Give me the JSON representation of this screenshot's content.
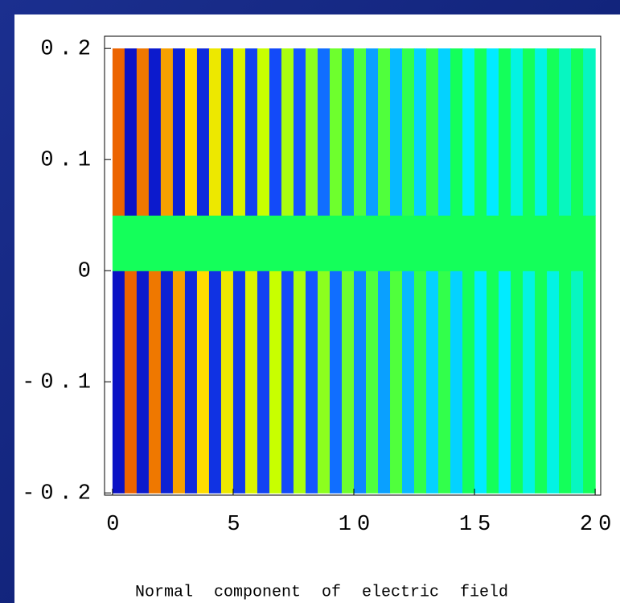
{
  "chart_data": {
    "type": "heatmap",
    "title": "Normal component of electric field",
    "x_edges": [
      0,
      0.5,
      1,
      1.5,
      2,
      2.5,
      3,
      3.5,
      4,
      4.5,
      5,
      5.5,
      6,
      6.5,
      7,
      7.5,
      8,
      8.5,
      9,
      9.5,
      10,
      10.5,
      11,
      11.5,
      12,
      12.5,
      13,
      13.5,
      14,
      14.5,
      15,
      15.5,
      16,
      16.5,
      17,
      17.5,
      18,
      18.5,
      19,
      19.5,
      20
    ],
    "y_edges": [
      -0.2,
      0,
      0.05,
      0.2
    ],
    "z": [
      [
        -0.95,
        0.9,
        -0.9,
        0.85,
        -0.85,
        0.75,
        -0.8,
        0.6,
        -0.75,
        0.5,
        -0.7,
        0.4,
        -0.65,
        0.3,
        -0.6,
        0.25,
        -0.55,
        0.2,
        -0.5,
        0.15,
        -0.45,
        0.1,
        -0.4,
        0.1,
        -0.35,
        0.05,
        -0.3,
        0.05,
        -0.3,
        0,
        -0.25,
        0,
        -0.25,
        0,
        -0.2,
        0,
        -0.2,
        0,
        -0.15,
        0
      ],
      [
        0,
        0,
        0,
        0,
        0,
        0,
        0,
        0,
        0,
        0,
        0,
        0,
        0,
        0,
        0,
        0,
        0,
        0,
        0,
        0,
        0,
        0,
        0,
        0,
        0,
        0,
        0,
        0,
        0,
        0,
        0,
        0,
        0,
        0,
        0,
        0,
        0,
        0,
        0,
        0
      ],
      [
        0.9,
        -0.95,
        0.85,
        -0.9,
        0.75,
        -0.85,
        0.6,
        -0.8,
        0.5,
        -0.7,
        0.4,
        -0.65,
        0.3,
        -0.6,
        0.25,
        -0.55,
        0.2,
        -0.5,
        0.15,
        -0.45,
        0.1,
        -0.4,
        0.1,
        -0.35,
        0.05,
        -0.3,
        0.05,
        -0.3,
        0,
        -0.25,
        0,
        -0.25,
        0,
        -0.2,
        0,
        -0.2,
        0,
        -0.15,
        0,
        -0.15
      ]
    ],
    "zlim": [
      -1,
      1
    ],
    "xlim": [
      -0.33,
      20.23
    ],
    "ylim": [
      -0.202,
      0.211
    ],
    "xticks": [
      0,
      5,
      10,
      15,
      20
    ],
    "yticks": [
      -0.2,
      -0.1,
      0,
      0.1,
      0.2
    ]
  }
}
